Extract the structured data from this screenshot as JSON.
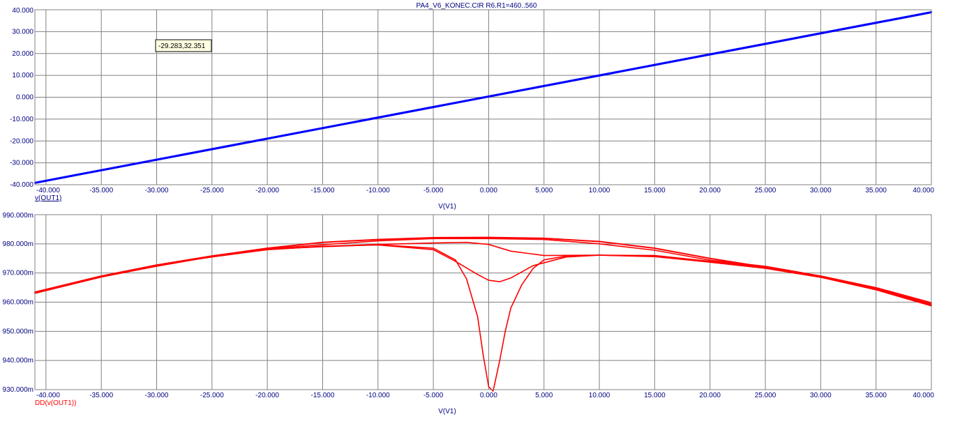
{
  "window_title": "PA4_V6_KONEC.CIR R6.R1=460..560",
  "tooltip": "-29.283,32.351",
  "colors": {
    "axis_text": "#000080",
    "grid": "#808080",
    "plot1_line": "#0000ff",
    "plot2_line": "#ff0000",
    "tooltip_bg": "#ffffe1"
  },
  "chart_data": [
    {
      "type": "line",
      "title": "",
      "xlabel": "V(V1)",
      "ylabel": "v(OUT1)",
      "xlim": [
        -41,
        40
      ],
      "ylim": [
        -40,
        40
      ],
      "grid": true,
      "x_ticks": [
        "-40.000",
        "-35.000",
        "-30.000",
        "-25.000",
        "-20.000",
        "-15.000",
        "-10.000",
        "-5.000",
        "0.000",
        "5.000",
        "10.000",
        "15.000",
        "20.000",
        "25.000",
        "30.000",
        "35.000",
        "40.000"
      ],
      "x_tick_values": [
        -40,
        -35,
        -30,
        -25,
        -20,
        -15,
        -10,
        -5,
        0,
        5,
        10,
        15,
        20,
        25,
        30,
        35,
        40
      ],
      "y_ticks": [
        "40.000",
        "30.000",
        "20.000",
        "10.000",
        "0.000",
        "-10.000",
        "-20.000",
        "-30.000",
        "-40.000"
      ],
      "y_tick_values": [
        40,
        30,
        20,
        10,
        0,
        -10,
        -20,
        -30,
        -40
      ],
      "series": [
        {
          "x": [
            -41,
            40
          ],
          "y": [
            -39,
            39
          ]
        },
        {
          "x": [
            -41,
            40
          ],
          "y": [
            -39.4,
            38.6
          ]
        }
      ]
    },
    {
      "type": "line",
      "title": "",
      "xlabel": "V(V1)",
      "ylabel": "DD(v(OUT1))",
      "xlim": [
        -41,
        40
      ],
      "ylim": [
        930,
        990
      ],
      "grid": true,
      "x_ticks": [
        "-40.000",
        "-35.000",
        "-30.000",
        "-25.000",
        "-20.000",
        "-15.000",
        "-10.000",
        "-5.000",
        "0.000",
        "5.000",
        "10.000",
        "15.000",
        "20.000",
        "25.000",
        "30.000",
        "35.000",
        "40.000"
      ],
      "x_tick_values": [
        -40,
        -35,
        -30,
        -25,
        -20,
        -15,
        -10,
        -5,
        0,
        5,
        10,
        15,
        20,
        25,
        30,
        35,
        40
      ],
      "y_ticks": [
        "990.000m",
        "980.000m",
        "970.000m",
        "960.000m",
        "950.000m",
        "940.000m",
        "930.000m"
      ],
      "y_tick_values": [
        990,
        980,
        970,
        960,
        950,
        940,
        930
      ],
      "series": [
        {
          "x": [
            -41,
            -35,
            -30,
            -25,
            -20,
            -15,
            -10,
            -5,
            0,
            5,
            10,
            15,
            20,
            25,
            30,
            35,
            40
          ],
          "y": [
            963.2,
            968.8,
            972.5,
            975.8,
            978.5,
            980.5,
            981.5,
            982.1,
            982.2,
            981.9,
            980.8,
            978.5,
            975.0,
            972.0,
            968.7,
            964.5,
            959.0
          ]
        },
        {
          "x": [
            -41,
            -35,
            -30,
            -25,
            -20,
            -15,
            -10,
            -5,
            -2,
            0,
            2,
            5,
            10,
            15,
            20,
            25,
            30,
            35,
            40
          ],
          "y": [
            963.4,
            969.0,
            972.7,
            975.5,
            978.0,
            979.1,
            979.8,
            980.3,
            980.5,
            979.8,
            977.5,
            976.0,
            976.1,
            976.0,
            974.0,
            972.0,
            968.9,
            964.8,
            959.4
          ]
        },
        {
          "x": [
            -41,
            -35,
            -30,
            -25,
            -20,
            -15,
            -10,
            -5,
            -3,
            -1,
            0,
            1,
            2,
            4,
            7,
            10,
            15,
            20,
            25,
            30,
            35,
            40
          ],
          "y": [
            963.0,
            968.6,
            972.3,
            975.6,
            978.0,
            979.2,
            979.6,
            978.0,
            974.0,
            969.5,
            967.5,
            967.0,
            968.3,
            972.5,
            975.5,
            976.1,
            975.6,
            973.7,
            971.6,
            968.5,
            964.2,
            958.7
          ]
        },
        {
          "x": [
            -41,
            -35,
            -30,
            -25,
            -20,
            -15,
            -10,
            -5,
            -3,
            -2,
            -1,
            -0.5,
            0,
            0.4,
            1,
            1.5,
            2,
            3,
            4,
            5,
            7,
            10,
            15,
            20,
            25,
            30,
            35,
            40
          ],
          "y": [
            963.1,
            968.7,
            972.4,
            975.7,
            978.2,
            979.0,
            979.7,
            978.5,
            974.5,
            968.0,
            955.0,
            942.0,
            931.0,
            929.5,
            940.0,
            950.0,
            958.0,
            966.0,
            971.5,
            974.5,
            975.8,
            976.1,
            975.8,
            973.8,
            971.8,
            968.6,
            964.4,
            958.9
          ]
        },
        {
          "x": [
            -41,
            -35,
            -30,
            -25,
            -20,
            -15,
            -10,
            -5,
            0,
            5,
            10,
            15,
            20,
            25,
            30,
            35,
            40
          ],
          "y": [
            963.5,
            969.0,
            972.8,
            975.9,
            978.3,
            979.7,
            981.0,
            981.8,
            981.8,
            981.5,
            980.0,
            977.8,
            974.4,
            972.3,
            969.0,
            965.0,
            959.8
          ]
        }
      ]
    }
  ]
}
